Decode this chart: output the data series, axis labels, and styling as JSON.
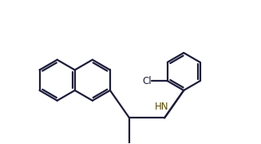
{
  "background_color": "#ffffff",
  "bond_color": "#1c1c3a",
  "hn_color": "#5a4a00",
  "cl_color": "#1c1c3a",
  "line_width": 1.6,
  "dbo": 0.055,
  "figsize": [
    3.27,
    1.8
  ],
  "dpi": 100,
  "xlim": [
    -0.3,
    5.6
  ],
  "ylim": [
    -1.0,
    2.5
  ]
}
